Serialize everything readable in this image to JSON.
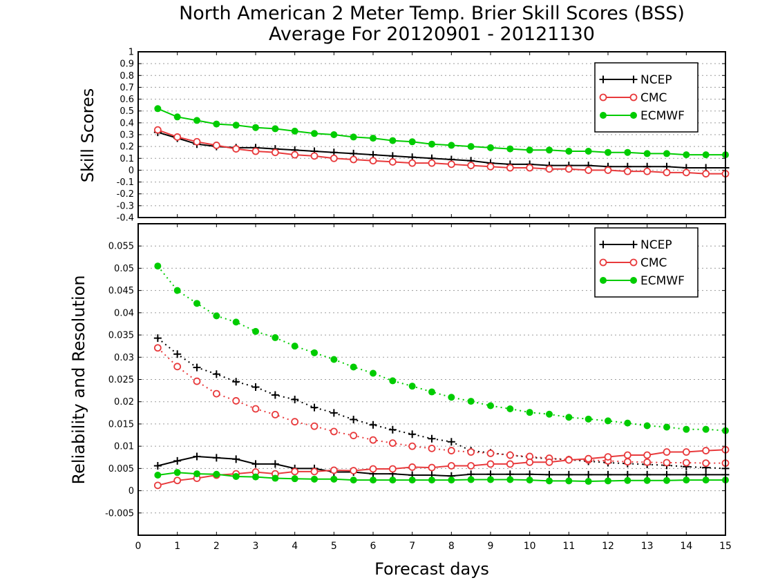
{
  "figure": {
    "title_line1": "North American 2 Meter Temp. Brier Skill Scores (BSS)",
    "title_line2": "Average For 20120901 - 20121130",
    "xlabel": "Forecast days"
  },
  "colors": {
    "NCEP": "#000000",
    "CMC": "#e8393b",
    "ECMWF": "#00cc00"
  },
  "chart_data": [
    {
      "type": "line",
      "ylabel": "Skill Scores",
      "xlim": [
        0,
        15
      ],
      "ylim": [
        -0.4,
        1
      ],
      "x_ticks": [
        0,
        1,
        2,
        3,
        4,
        5,
        6,
        7,
        8,
        9,
        10,
        11,
        12,
        13,
        14,
        15
      ],
      "y_ticks": [
        -0.4,
        -0.3,
        -0.2,
        -0.1,
        0,
        0.1,
        0.2,
        0.3,
        0.4,
        0.5,
        0.6,
        0.7,
        0.8,
        0.9,
        1
      ],
      "y_tick_labels": [
        "-0.4",
        "-0.3",
        "-0.2",
        "-0.1",
        "0",
        "0.1",
        "0.2",
        "0.3",
        "0.4",
        "0.5",
        "0.6",
        "0.7",
        "0.8",
        "0.9",
        "1"
      ],
      "grid": true,
      "legend_position": "top-right",
      "x": [
        0.5,
        1,
        1.5,
        2,
        2.5,
        3,
        3.5,
        4,
        4.5,
        5,
        5.5,
        6,
        6.5,
        7,
        7.5,
        8,
        8.5,
        9,
        9.5,
        10,
        10.5,
        11,
        11.5,
        12,
        12.5,
        13,
        13.5,
        14,
        14.5,
        15
      ],
      "series": [
        {
          "name": "NCEP",
          "marker": "plus",
          "style": "solid",
          "values": [
            0.32,
            0.27,
            0.22,
            0.2,
            0.19,
            0.19,
            0.18,
            0.17,
            0.16,
            0.15,
            0.14,
            0.13,
            0.12,
            0.11,
            0.1,
            0.09,
            0.08,
            0.06,
            0.05,
            0.05,
            0.04,
            0.04,
            0.04,
            0.03,
            0.03,
            0.03,
            0.03,
            0.02,
            0.02,
            0.02
          ]
        },
        {
          "name": "CMC",
          "marker": "open-circle",
          "style": "solid",
          "values": [
            0.34,
            0.28,
            0.24,
            0.21,
            0.18,
            0.16,
            0.15,
            0.13,
            0.12,
            0.1,
            0.09,
            0.08,
            0.07,
            0.06,
            0.06,
            0.05,
            0.04,
            0.03,
            0.02,
            0.02,
            0.01,
            0.01,
            0,
            0,
            -0.01,
            -0.01,
            -0.02,
            -0.02,
            -0.03,
            -0.03
          ]
        },
        {
          "name": "ECMWF",
          "marker": "filled-circle",
          "style": "solid",
          "values": [
            0.52,
            0.45,
            0.42,
            0.39,
            0.38,
            0.36,
            0.35,
            0.33,
            0.31,
            0.3,
            0.28,
            0.27,
            0.25,
            0.24,
            0.22,
            0.21,
            0.2,
            0.19,
            0.18,
            0.17,
            0.17,
            0.16,
            0.16,
            0.15,
            0.15,
            0.14,
            0.14,
            0.13,
            0.13,
            0.13
          ]
        }
      ]
    },
    {
      "type": "line",
      "ylabel": "Reliability and Resolution",
      "xlim": [
        0,
        15
      ],
      "ylim": [
        -0.01,
        0.06
      ],
      "x_ticks": [
        0,
        1,
        2,
        3,
        4,
        5,
        6,
        7,
        8,
        9,
        10,
        11,
        12,
        13,
        14,
        15
      ],
      "y_ticks": [
        -0.005,
        0,
        0.005,
        0.01,
        0.015,
        0.02,
        0.025,
        0.03,
        0.035,
        0.04,
        0.045,
        0.05,
        0.055
      ],
      "y_tick_labels": [
        "-0.005",
        "0",
        "0.005",
        "0.01",
        "0.015",
        "0.02",
        "0.025",
        "0.03",
        "0.035",
        "0.04",
        "0.045",
        "0.05",
        "0.055"
      ],
      "grid": true,
      "legend_position": "top-right",
      "x": [
        0.5,
        1,
        1.5,
        2,
        2.5,
        3,
        3.5,
        4,
        4.5,
        5,
        5.5,
        6,
        6.5,
        7,
        7.5,
        8,
        8.5,
        9,
        9.5,
        10,
        10.5,
        11,
        11.5,
        12,
        12.5,
        13,
        13.5,
        14,
        14.5,
        15
      ],
      "series": [
        {
          "name": "NCEP",
          "marker": "plus",
          "style": "dotted",
          "values": [
            0.0343,
            0.0307,
            0.0277,
            0.0262,
            0.0245,
            0.0233,
            0.0215,
            0.0205,
            0.0187,
            0.0175,
            0.016,
            0.0148,
            0.0137,
            0.0127,
            0.0117,
            0.011,
            0.009,
            0.0085,
            0.008,
            0.0075,
            0.0072,
            0.007,
            0.0066,
            0.0063,
            0.0061,
            0.0059,
            0.0057,
            0.0054,
            0.0052,
            0.005
          ]
        },
        {
          "name": "CMC",
          "marker": "open-circle",
          "style": "dotted",
          "values": [
            0.0321,
            0.0279,
            0.0246,
            0.0218,
            0.0202,
            0.0184,
            0.0171,
            0.0155,
            0.0145,
            0.0133,
            0.0124,
            0.0114,
            0.0107,
            0.01,
            0.0095,
            0.009,
            0.0087,
            0.0084,
            0.008,
            0.0077,
            0.0073,
            0.007,
            0.0069,
            0.0067,
            0.0065,
            0.0064,
            0.0063,
            0.0063,
            0.0062,
            0.0062
          ]
        },
        {
          "name": "ECMWF",
          "marker": "filled-circle",
          "style": "dotted",
          "values": [
            0.0505,
            0.045,
            0.0421,
            0.0393,
            0.0379,
            0.0358,
            0.0344,
            0.0325,
            0.031,
            0.0295,
            0.0278,
            0.0264,
            0.0247,
            0.0235,
            0.0222,
            0.021,
            0.0201,
            0.0191,
            0.0184,
            0.0176,
            0.0172,
            0.0165,
            0.0161,
            0.0157,
            0.0152,
            0.0146,
            0.0143,
            0.0138,
            0.0138,
            0.0135
          ]
        },
        {
          "name": "NCEP",
          "marker": "plus",
          "style": "solid",
          "values": [
            0.0056,
            0.0067,
            0.0077,
            0.0074,
            0.0071,
            0.006,
            0.006,
            0.005,
            0.005,
            0.0042,
            0.0042,
            0.0038,
            0.0038,
            0.0035,
            0.0035,
            0.0033,
            0.0037,
            0.0037,
            0.0037,
            0.0037,
            0.0036,
            0.0036,
            0.0036,
            0.0036,
            0.0036,
            0.0036,
            0.0036,
            0.0036,
            0.0036,
            0.0036
          ]
        },
        {
          "name": "CMC",
          "marker": "open-circle",
          "style": "solid",
          "values": [
            0.0012,
            0.0023,
            0.0028,
            0.0035,
            0.0038,
            0.0042,
            0.0038,
            0.0043,
            0.0043,
            0.0046,
            0.0045,
            0.0049,
            0.0049,
            0.0053,
            0.0052,
            0.0056,
            0.0056,
            0.006,
            0.006,
            0.0064,
            0.0064,
            0.0069,
            0.0072,
            0.0076,
            0.008,
            0.008,
            0.0087,
            0.0087,
            0.009,
            0.0092
          ]
        },
        {
          "name": "ECMWF",
          "marker": "filled-circle",
          "style": "solid",
          "values": [
            0.0035,
            0.0041,
            0.0038,
            0.0037,
            0.0032,
            0.0031,
            0.0028,
            0.0027,
            0.0026,
            0.0026,
            0.0024,
            0.0024,
            0.0024,
            0.0024,
            0.0024,
            0.0024,
            0.0025,
            0.0025,
            0.0025,
            0.0024,
            0.0022,
            0.0022,
            0.0021,
            0.0022,
            0.0023,
            0.0023,
            0.0023,
            0.0024,
            0.0024,
            0.0024
          ]
        }
      ]
    }
  ]
}
